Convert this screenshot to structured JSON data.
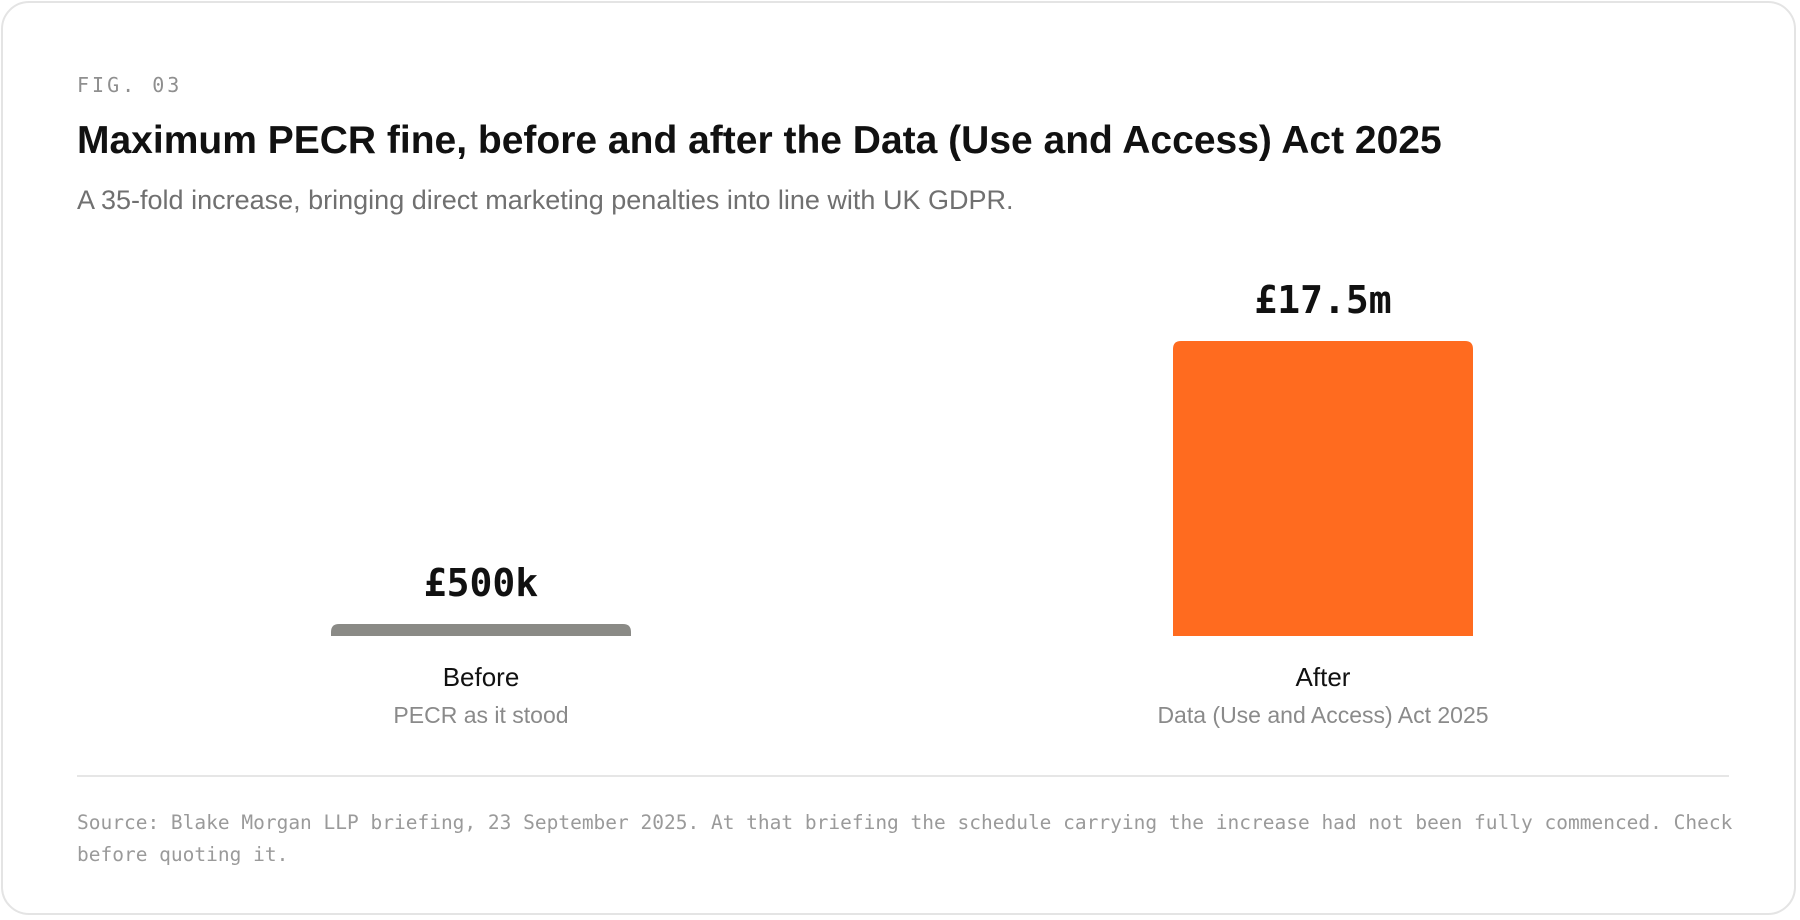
{
  "figure": {
    "label": "FIG. 03",
    "title": "Maximum PECR fine, before and after the Data (Use and Access) Act 2025",
    "subtitle": "A 35-fold increase, bringing direct marketing penalties into line with UK GDPR.",
    "source": "Source: Blake Morgan LLP briefing, 23 September 2025. At that briefing the schedule carrying the increase had not been fully commenced. Check before quoting it."
  },
  "colors": {
    "before_bar": "#8a8a86",
    "after_bar": "#ff6b1f",
    "value_label": "#111111",
    "category_label": "#111111",
    "category_sublabel": "#8a8a8a"
  },
  "chart_data": {
    "type": "bar",
    "title": "Maximum PECR fine, before and after the Data (Use and Access) Act 2025",
    "subtitle": "A 35-fold increase, bringing direct marketing penalties into line with UK GDPR.",
    "xlabel": "",
    "ylabel": "",
    "unit": "GBP",
    "grid": false,
    "legend": "none",
    "ylim": [
      0,
      17500000
    ],
    "categories": [
      "Before",
      "After"
    ],
    "category_sublabels": [
      "PECR as it stood",
      "Data (Use and Access) Act 2025"
    ],
    "values": [
      500000,
      17500000
    ],
    "value_labels": [
      "£500k",
      "£17.5m"
    ]
  }
}
